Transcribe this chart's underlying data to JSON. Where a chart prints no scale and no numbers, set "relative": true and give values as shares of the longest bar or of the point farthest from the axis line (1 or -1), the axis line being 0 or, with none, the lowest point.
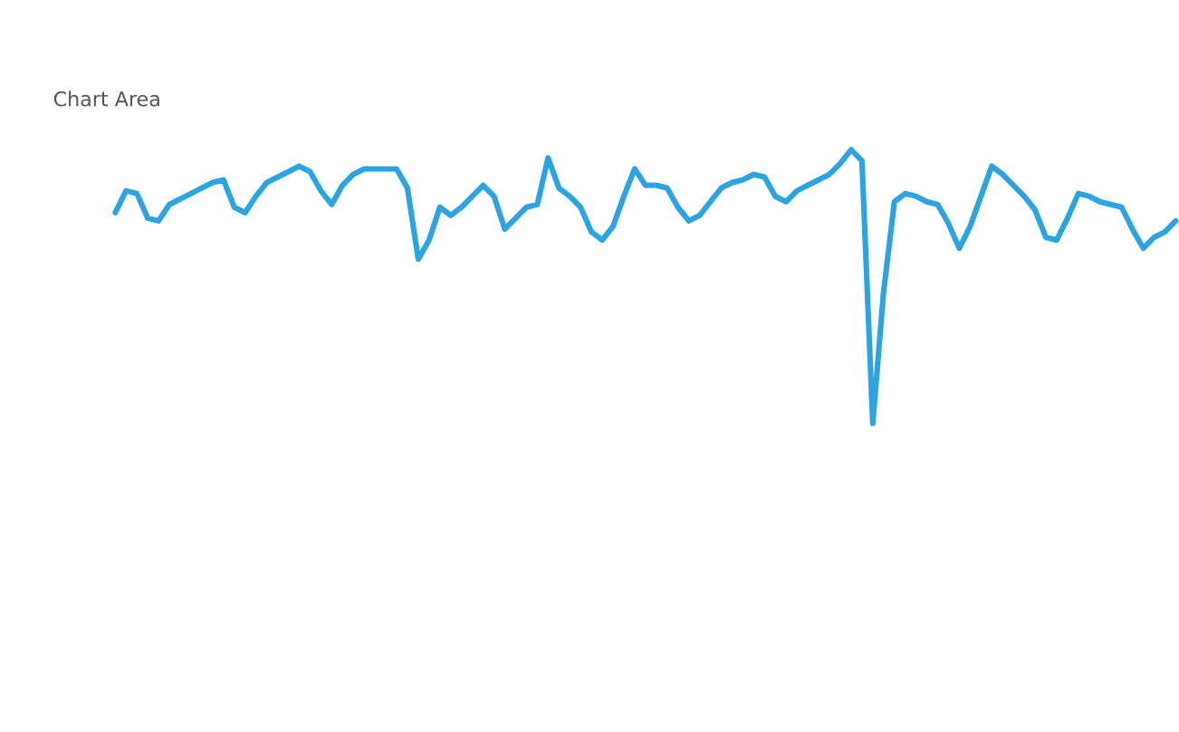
{
  "chart_data": {
    "type": "line",
    "relative": true,
    "color": "#2aa4e2",
    "legend": false,
    "annotations": [
      "Chart Area"
    ],
    "categories": [
      null,
      null,
      null,
      null,
      null,
      null,
      null,
      null,
      null,
      null,
      null,
      null,
      null,
      null,
      null,
      null,
      null,
      null,
      null,
      null,
      null,
      null,
      null,
      null,
      null,
      null,
      null,
      null,
      null,
      null,
      null,
      null,
      null,
      null,
      null,
      null,
      null,
      null,
      null,
      null,
      null,
      null,
      null,
      null,
      null,
      null,
      null,
      null,
      null,
      null,
      null,
      null,
      null,
      null,
      null,
      null,
      null,
      null,
      null,
      null,
      null,
      null,
      null,
      null,
      null,
      null,
      null,
      null,
      null,
      null,
      null,
      null,
      null,
      null,
      null,
      null,
      null,
      null,
      null,
      null,
      null,
      null,
      null,
      null,
      null,
      null,
      null,
      null,
      null,
      null,
      null,
      null,
      null,
      null,
      null,
      null,
      null,
      null,
      null
    ],
    "values": [
      0.77,
      0.85,
      0.84,
      0.75,
      0.74,
      0.8,
      0.82,
      0.84,
      0.86,
      0.88,
      0.89,
      0.79,
      0.77,
      0.83,
      0.88,
      0.9,
      0.92,
      0.94,
      0.92,
      0.85,
      0.8,
      0.87,
      0.91,
      0.93,
      0.93,
      0.93,
      0.93,
      0.86,
      0.6,
      0.67,
      0.79,
      0.76,
      0.79,
      0.83,
      0.87,
      0.83,
      0.71,
      0.75,
      0.79,
      0.8,
      0.97,
      0.86,
      0.83,
      0.79,
      0.7,
      0.67,
      0.72,
      0.83,
      0.93,
      0.87,
      0.87,
      0.86,
      0.79,
      0.74,
      0.76,
      0.81,
      0.86,
      0.88,
      0.89,
      0.91,
      0.9,
      0.83,
      0.81,
      0.85,
      0.87,
      0.89,
      0.91,
      0.95,
      1.0,
      0.96,
      0,
      0.48,
      0.81,
      0.84,
      0.83,
      0.81,
      0.8,
      0.73,
      0.64,
      0.72,
      0.83,
      0.94,
      0.91,
      0.87,
      0.83,
      0.78,
      0.68,
      0.67,
      0.75,
      0.84,
      0.83,
      0.81,
      0.8,
      0.79,
      0.71,
      0.64,
      0.68,
      0.7,
      0.74
    ]
  }
}
